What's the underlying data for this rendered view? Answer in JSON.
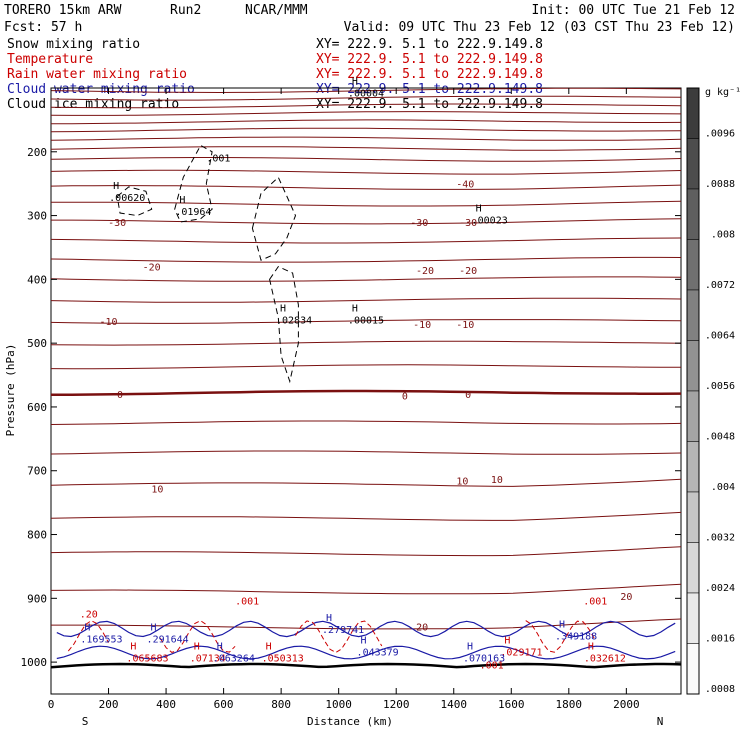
{
  "header": {
    "model": "TORERO  15km ARW",
    "run": "Run2",
    "org": "NCAR/MMM",
    "init": "Init: 00 UTC Tue 21 Feb 12",
    "fcst": "Fcst:    57 h",
    "valid": "Valid: 09 UTC Thu 23 Feb 12 (03 CST Thu 23 Feb 12)"
  },
  "fields": [
    {
      "name": "Snow mixing ratio",
      "xy": "XY= 222.9.  5.1 to 222.9.149.8",
      "color": "#000000"
    },
    {
      "name": "Temperature",
      "xy": "XY= 222.9.  5.1 to 222.9.149.8",
      "color": "#cc0000"
    },
    {
      "name": "Rain water mixing ratio",
      "xy": "XY= 222.9.  5.1 to 222.9.149.8",
      "color": "#cc0000"
    },
    {
      "name": "Cloud water mixing ratio",
      "xy": "XY= 222.9.  5.1 to 222.9.149.8",
      "color": "#1a1aa6"
    },
    {
      "name": "Cloud ice mixing ratio",
      "xy": "XY= 222.9.  5.1 to 222.9.149.8",
      "color": "#000000"
    }
  ],
  "chart_data": {
    "type": "cross-section contour",
    "xlabel": "Distance (km)",
    "ylabel": "Pressure (hPa)",
    "xlim": [
      0,
      2190
    ],
    "ylim": [
      1050,
      100
    ],
    "x_ticks": [
      0,
      200,
      400,
      600,
      800,
      1000,
      1200,
      1400,
      1600,
      1800,
      2000
    ],
    "y_ticks": [
      200,
      300,
      400,
      500,
      600,
      700,
      800,
      900,
      1000
    ],
    "x_ends": {
      "left": "S",
      "right": "N"
    },
    "colorbar": {
      "unit": "g kg⁻¹",
      "ticks": [
        ".0096",
        ".0088",
        ".008",
        ".0072",
        ".0064",
        ".0056",
        ".0048",
        ".004",
        ".0032",
        ".0024",
        ".0016",
        ".0008"
      ]
    },
    "temperature_contours": {
      "interval_C": 5,
      "color": "#7a1010",
      "labels": [
        {
          "text": "-40",
          "x": 1440,
          "p": 250
        },
        {
          "text": "-30",
          "x": 230,
          "p": 310
        },
        {
          "text": "-30",
          "x": 1280,
          "p": 310
        },
        {
          "text": "-30",
          "x": 1450,
          "p": 310
        },
        {
          "text": "-20",
          "x": 350,
          "p": 380
        },
        {
          "text": "-20",
          "x": 1300,
          "p": 385
        },
        {
          "text": "-20",
          "x": 1450,
          "p": 385
        },
        {
          "text": "-10",
          "x": 200,
          "p": 465
        },
        {
          "text": "-10",
          "x": 1290,
          "p": 470
        },
        {
          "text": "-10",
          "x": 1440,
          "p": 470
        },
        {
          "text": "0",
          "x": 240,
          "p": 580
        },
        {
          "text": "0",
          "x": 1230,
          "p": 582
        },
        {
          "text": "0",
          "x": 1450,
          "p": 580
        },
        {
          "text": "10",
          "x": 370,
          "p": 728
        },
        {
          "text": "10",
          "x": 1430,
          "p": 715
        },
        {
          "text": "10",
          "x": 1550,
          "p": 713
        },
        {
          "text": "20",
          "x": 1290,
          "p": 944
        },
        {
          "text": "20",
          "x": 2000,
          "p": 896
        }
      ]
    },
    "snow_mixing_ratio": {
      "color": "#000000",
      "maxima": [
        {
          "value": ".00620",
          "x": 230,
          "p": 268
        },
        {
          "value": ".01964",
          "x": 460,
          "p": 290
        },
        {
          "value": ".02834",
          "x": 810,
          "p": 460
        },
        {
          "value": ".00015",
          "x": 1060,
          "p": 460
        },
        {
          "value": ".00023",
          "x": 1490,
          "p": 303
        },
        {
          "value": ".00004",
          "x": 1060,
          "p": 104
        }
      ],
      "labels": [
        {
          "value": ".001",
          "x": 540,
          "p": 215
        }
      ]
    },
    "rain_water_mixing_ratio": {
      "color": "#cc0000",
      "maxima": [
        {
          "value": ".065683",
          "x": 290,
          "p": 990
        },
        {
          "value": ".07134",
          "x": 510,
          "p": 990
        },
        {
          "value": ".050313",
          "x": 760,
          "p": 990
        },
        {
          "value": ".029171",
          "x": 1590,
          "p": 980
        },
        {
          "value": ".032612",
          "x": 1880,
          "p": 990
        }
      ],
      "labels": [
        {
          "value": ".001",
          "x": 640,
          "p": 910
        },
        {
          "value": ".001",
          "x": 1850,
          "p": 910
        },
        {
          "value": ".001",
          "x": 1490,
          "p": 1010
        },
        {
          "value": ".20",
          "x": 100,
          "p": 930
        }
      ]
    },
    "cloud_water_mixing_ratio": {
      "color": "#1a1aa6",
      "maxima": [
        {
          "value": ".169553",
          "x": 130,
          "p": 960
        },
        {
          "value": ".291644",
          "x": 360,
          "p": 960
        },
        {
          "value": ".063264",
          "x": 590,
          "p": 990
        },
        {
          "value": ".279741",
          "x": 970,
          "p": 945
        },
        {
          "value": ".043379",
          "x": 1090,
          "p": 980
        },
        {
          "value": ".070163",
          "x": 1460,
          "p": 990
        },
        {
          "value": ".349188",
          "x": 1780,
          "p": 955
        }
      ]
    }
  }
}
